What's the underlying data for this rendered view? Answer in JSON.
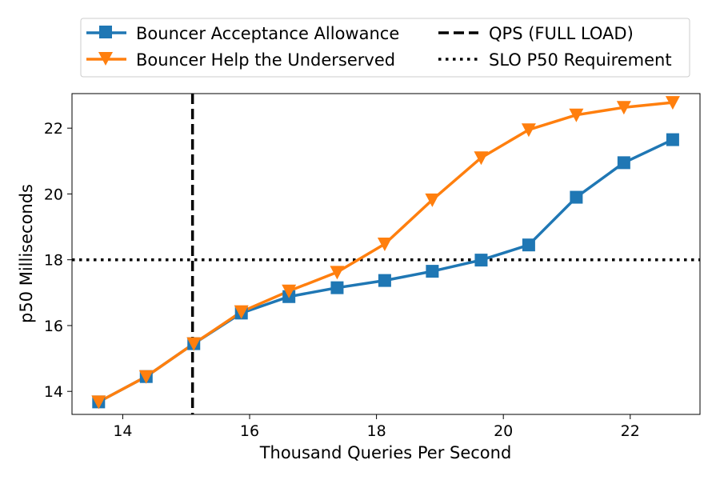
{
  "chart_data": {
    "type": "line",
    "title": "",
    "xlabel": "Thousand Queries Per Second",
    "ylabel": "p50 Milliseconds",
    "xlim": [
      13.2,
      23.1
    ],
    "ylim": [
      13.3,
      23.05
    ],
    "xticks": [
      14,
      16,
      18,
      20,
      22
    ],
    "yticks": [
      14,
      16,
      18,
      20,
      22
    ],
    "grid": false,
    "legend_position": "top (above plot, two columns)",
    "series": [
      {
        "name": "Bouncer Acceptance Allowance",
        "color": "#1f77b4",
        "marker": "square",
        "x": [
          13.62,
          14.37,
          15.12,
          15.87,
          16.62,
          17.38,
          18.13,
          18.88,
          19.65,
          20.4,
          21.15,
          21.9,
          22.67
        ],
        "y": [
          13.68,
          14.45,
          15.45,
          16.38,
          16.88,
          17.15,
          17.37,
          17.65,
          17.99,
          18.45,
          19.9,
          20.95,
          21.65
        ]
      },
      {
        "name": "Bouncer Help the Underserved",
        "color": "#ff7f0e",
        "marker": "triangle-down",
        "x": [
          13.62,
          14.37,
          15.12,
          15.87,
          16.62,
          17.38,
          18.13,
          18.88,
          19.65,
          20.4,
          21.15,
          21.9,
          22.67
        ],
        "y": [
          13.68,
          14.45,
          15.45,
          16.42,
          17.05,
          17.62,
          18.48,
          19.82,
          21.1,
          21.95,
          22.4,
          22.63,
          22.78
        ]
      }
    ],
    "reference_lines": [
      {
        "name": "QPS (FULL LOAD)",
        "orientation": "vertical",
        "value": 15.1,
        "style": "dashed",
        "color": "#000000"
      },
      {
        "name": "SLO P50 Requirement",
        "orientation": "horizontal",
        "value": 18.0,
        "style": "dotted",
        "color": "#000000"
      }
    ]
  }
}
